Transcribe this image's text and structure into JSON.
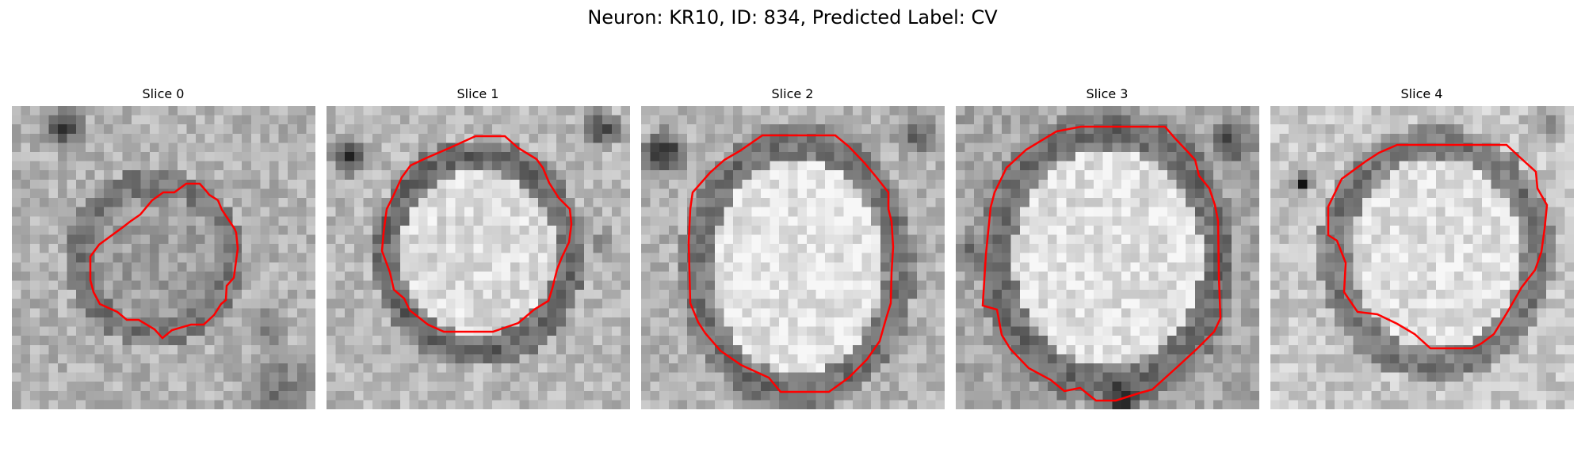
{
  "figure": {
    "suptitle": "Neuron: KR10, ID: 834, Predicted Label: CV"
  },
  "panels": [
    {
      "title": "Slice 0"
    },
    {
      "title": "Slice 1"
    },
    {
      "title": "Slice 2"
    },
    {
      "title": "Slice 3"
    },
    {
      "title": "Slice 4"
    }
  ],
  "colors": {
    "contour": "#ff0000",
    "background": "#ffffff"
  }
}
